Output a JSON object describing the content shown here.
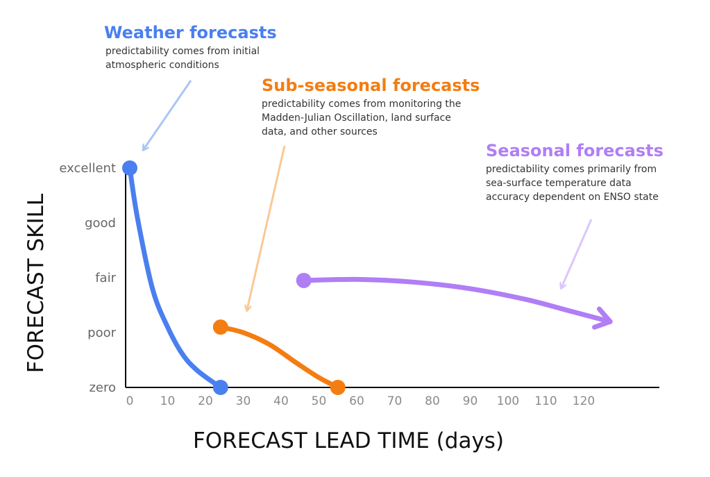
{
  "chart_data": {
    "type": "line",
    "xlabel": "FORECAST LEAD TIME (days)",
    "ylabel": "FORECAST SKILL",
    "x_ticks": [
      0,
      10,
      20,
      30,
      40,
      50,
      60,
      70,
      80,
      90,
      100,
      110,
      120
    ],
    "y_categories": [
      "zero",
      "poor",
      "fair",
      "good",
      "excellent"
    ],
    "xlim": [
      0,
      130
    ],
    "ylim": [
      0,
      4
    ],
    "grid": false,
    "series": [
      {
        "color": "#4a7ff0",
        "start": {
          "x": 0,
          "y": 4
        },
        "end": {
          "x": 24,
          "y": 0
        },
        "points": [
          [
            0,
            4
          ],
          [
            2,
            3.1
          ],
          [
            6,
            1.8
          ],
          [
            10,
            1.1
          ],
          [
            14,
            0.6
          ],
          [
            18,
            0.3
          ],
          [
            24,
            0
          ]
        ]
      },
      {
        "color": "#f47d12",
        "start": {
          "x": 24,
          "y": 1.1
        },
        "end": {
          "x": 55,
          "y": 0
        },
        "points": [
          [
            24,
            1.1
          ],
          [
            30,
            1.0
          ],
          [
            37,
            0.78
          ],
          [
            44,
            0.45
          ],
          [
            50,
            0.18
          ],
          [
            55,
            0
          ]
        ]
      },
      {
        "color": "#b07ef5",
        "start": {
          "x": 46,
          "y": 1.95
        },
        "end_arrow": true,
        "points": [
          [
            46,
            1.95
          ],
          [
            60,
            1.97
          ],
          [
            75,
            1.92
          ],
          [
            90,
            1.8
          ],
          [
            105,
            1.6
          ],
          [
            116,
            1.4
          ],
          [
            127,
            1.2
          ]
        ]
      }
    ],
    "annotations": [
      {
        "title": "Weather forecasts",
        "lines": [
          "predictability comes from initial",
          "atmospheric conditions"
        ],
        "color": "#4a7ff0",
        "pointer_color": "#a9c6f5"
      },
      {
        "title": "Sub-seasonal forecasts",
        "lines": [
          "predictability comes from monitoring the",
          "Madden-Julian Oscillation, land surface",
          "data, and other sources"
        ],
        "color": "#f47d12",
        "pointer_color": "#f9c896"
      },
      {
        "title": "Seasonal forecasts",
        "lines": [
          "predictability comes primarily from",
          "sea-surface temperature data",
          "accuracy dependent on ENSO state"
        ],
        "color": "#b07ef5",
        "pointer_color": "#dbc7fb"
      }
    ]
  }
}
